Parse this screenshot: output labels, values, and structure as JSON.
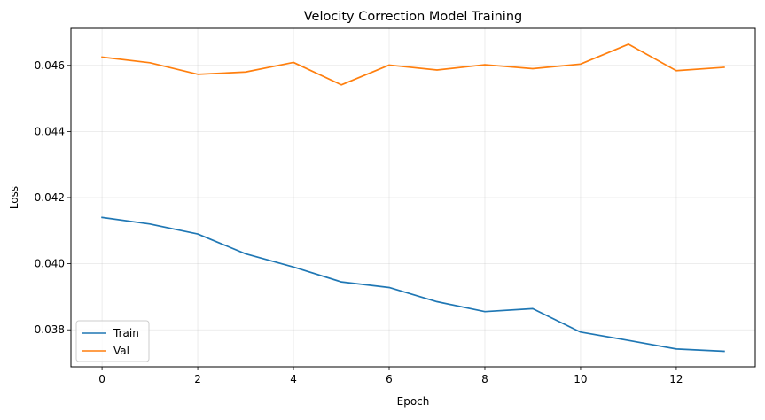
{
  "chart_data": {
    "type": "line",
    "title": "Velocity Correction Model Training",
    "xlabel": "Epoch",
    "ylabel": "Loss",
    "xlim": [
      -0.65,
      13.65
    ],
    "ylim": [
      0.03688,
      0.04712
    ],
    "xticks": [
      0,
      2,
      4,
      6,
      8,
      10,
      12
    ],
    "xtick_labels": [
      "0",
      "2",
      "4",
      "6",
      "8",
      "10",
      "12"
    ],
    "yticks": [
      0.038,
      0.04,
      0.042,
      0.044,
      0.046
    ],
    "ytick_labels": [
      "0.038",
      "0.040",
      "0.042",
      "0.044",
      "0.046"
    ],
    "grid": true,
    "legend_position": "lower-left",
    "x": [
      0,
      1,
      2,
      3,
      4,
      5,
      6,
      7,
      8,
      9,
      10,
      11,
      12,
      13
    ],
    "series": [
      {
        "name": "Train",
        "color": "#1f77b4",
        "values": [
          0.0414,
          0.0412,
          0.0409,
          0.0403,
          0.0399,
          0.03945,
          0.03928,
          0.03885,
          0.03855,
          0.03864,
          0.03793,
          0.03768,
          0.03742,
          0.03735
        ]
      },
      {
        "name": "Val",
        "color": "#ff7f0e",
        "values": [
          0.04625,
          0.04608,
          0.04573,
          0.0458,
          0.04609,
          0.04541,
          0.04601,
          0.04586,
          0.04602,
          0.0459,
          0.04604,
          0.04664,
          0.04584,
          0.04594
        ]
      }
    ]
  }
}
